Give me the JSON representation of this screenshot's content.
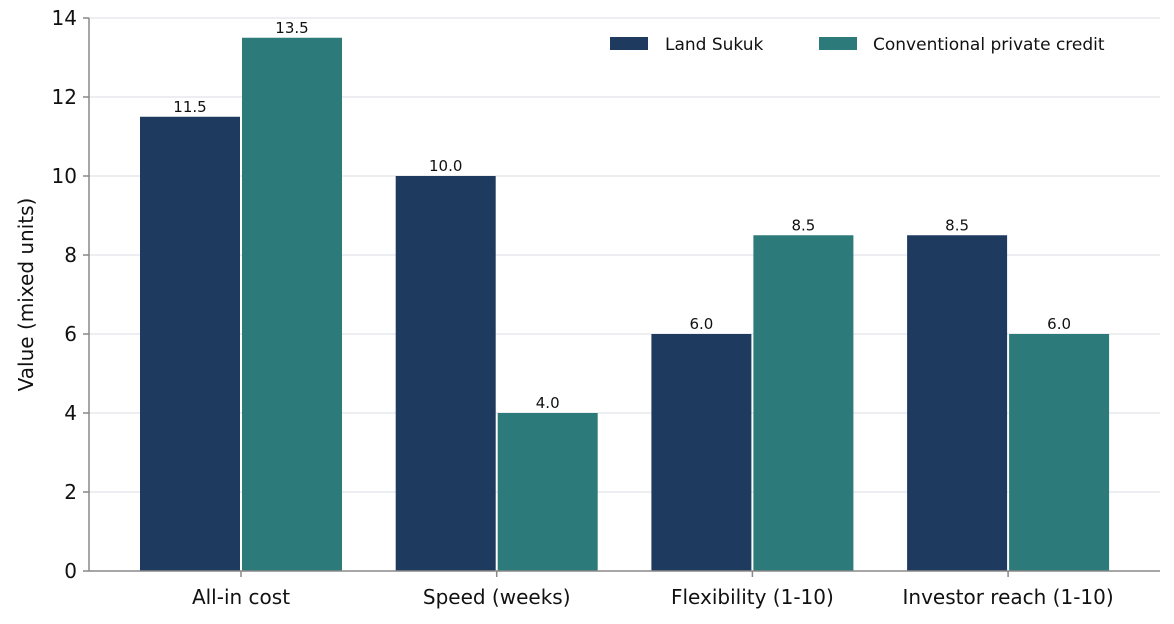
{
  "colors": {
    "series_0": "#1f3a5f",
    "series_1": "#2d7a7b",
    "grid": "#e6e8ee",
    "axis": "#888888"
  },
  "chart_data": {
    "type": "bar",
    "title": "",
    "xlabel": "",
    "ylabel": "Value (mixed units)",
    "categories": [
      "All-in cost",
      "Speed (weeks)",
      "Flexibility (1-10)",
      "Investor reach (1-10)"
    ],
    "series": [
      {
        "name": "Land Sukuk",
        "values": [
          11.5,
          10.0,
          6.0,
          8.5
        ],
        "labels": [
          "11.5",
          "10.0",
          "6.0",
          "8.5"
        ]
      },
      {
        "name": "Conventional private credit",
        "values": [
          13.5,
          4.0,
          8.5,
          6.0
        ],
        "labels": [
          "13.5",
          "4.0",
          "8.5",
          "6.0"
        ]
      }
    ],
    "ylim": [
      0,
      14
    ],
    "yticks": [
      0,
      2,
      4,
      6,
      8,
      10,
      12,
      14
    ],
    "ytick_labels": [
      "0",
      "2",
      "4",
      "6",
      "8",
      "10",
      "12",
      "14"
    ],
    "grid": "horizontal",
    "legend_position": "top-right"
  }
}
